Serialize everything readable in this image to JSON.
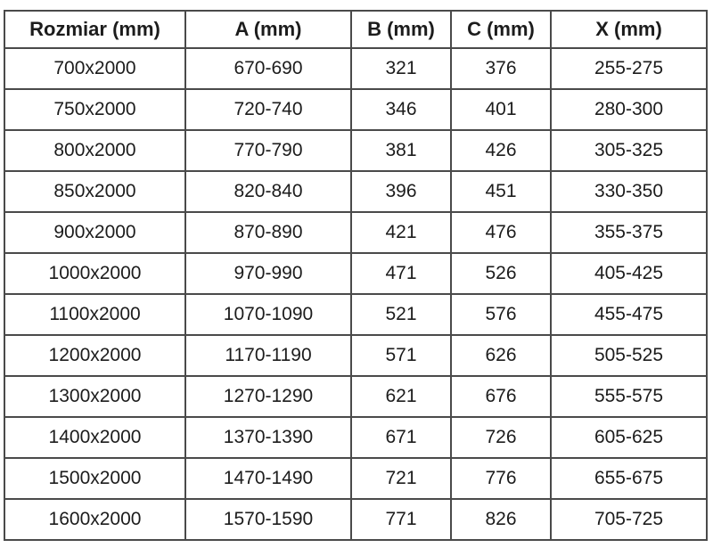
{
  "chart_data": {
    "type": "table",
    "columns": [
      "Rozmiar (mm)",
      "A (mm)",
      "B (mm)",
      "C (mm)",
      "X (mm)"
    ],
    "rows": [
      [
        "700x2000",
        "670-690",
        "321",
        "376",
        "255-275"
      ],
      [
        "750x2000",
        "720-740",
        "346",
        "401",
        "280-300"
      ],
      [
        "800x2000",
        "770-790",
        "381",
        "426",
        "305-325"
      ],
      [
        "850x2000",
        "820-840",
        "396",
        "451",
        "330-350"
      ],
      [
        "900x2000",
        "870-890",
        "421",
        "476",
        "355-375"
      ],
      [
        "1000x2000",
        "970-990",
        "471",
        "526",
        "405-425"
      ],
      [
        "1100x2000",
        "1070-1090",
        "521",
        "576",
        "455-475"
      ],
      [
        "1200x2000",
        "1170-1190",
        "571",
        "626",
        "505-525"
      ],
      [
        "1300x2000",
        "1270-1290",
        "621",
        "676",
        "555-575"
      ],
      [
        "1400x2000",
        "1370-1390",
        "671",
        "726",
        "605-625"
      ],
      [
        "1500x2000",
        "1470-1490",
        "721",
        "776",
        "655-675"
      ],
      [
        "1600x2000",
        "1570-1590",
        "771",
        "826",
        "705-725"
      ]
    ]
  },
  "colors": {
    "border": "#4a4a4a",
    "text": "#1c1c1c",
    "background": "#ffffff"
  }
}
